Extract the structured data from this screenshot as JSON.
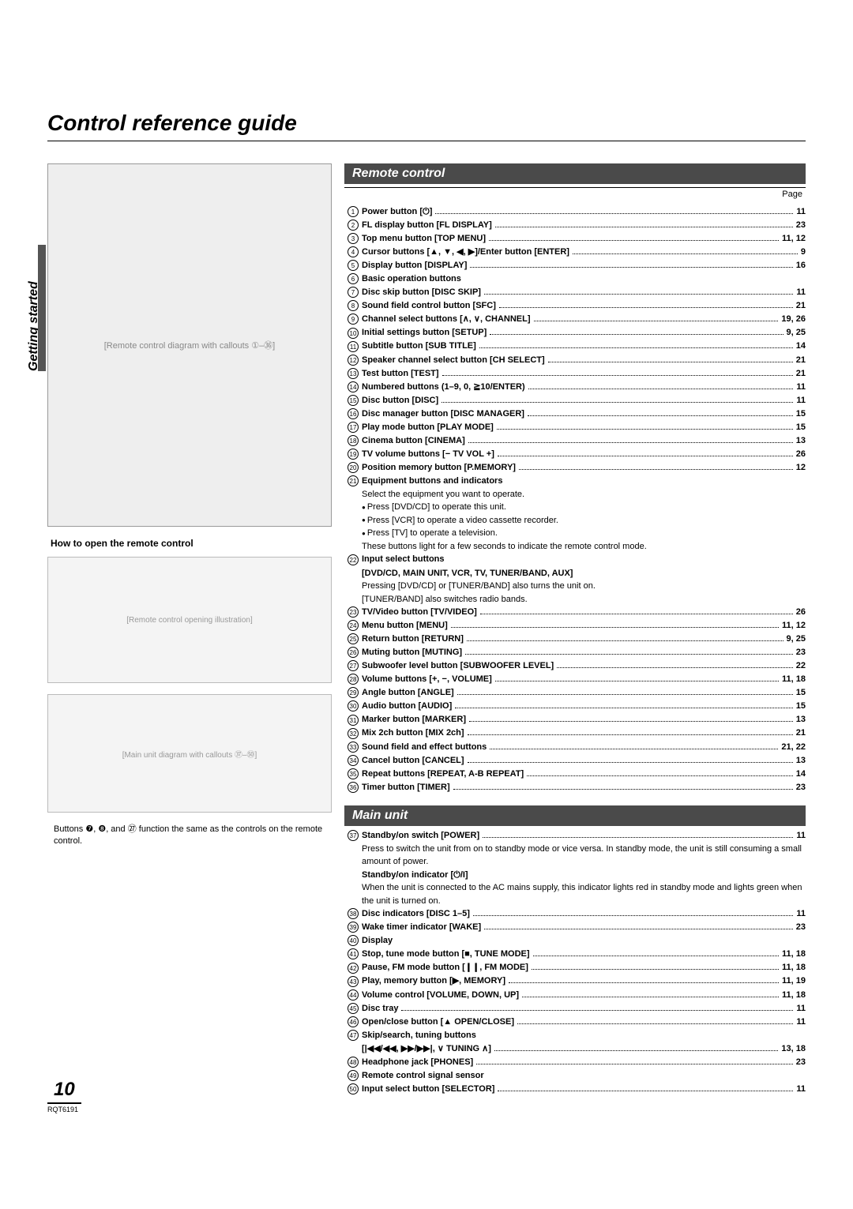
{
  "title": "Control reference guide",
  "side_tab": "Getting started",
  "page_header": "Page",
  "page_number": "10",
  "doc_id": "RQT6191",
  "left": {
    "remote_placeholder": "[Remote control diagram with callouts ①–㊱]",
    "open_heading": "How to open the remote control",
    "open_placeholder": "[Remote control opening illustration]",
    "unit_placeholder": "[Main unit diagram with callouts ㊲–㊿]",
    "caption": "Buttons ❼, ❽, and ㉗ function the same as the controls on the remote control."
  },
  "sections": {
    "remote": {
      "title": "Remote control",
      "items": [
        {
          "n": "1",
          "label": "Power button [⏻]",
          "page": "11"
        },
        {
          "n": "2",
          "label": "FL display button [FL DISPLAY]",
          "page": "23"
        },
        {
          "n": "3",
          "label": "Top menu button [TOP MENU]",
          "page": "11, 12"
        },
        {
          "n": "4",
          "label": "Cursor buttons [▲, ▼, ◀, ▶]/Enter button [ENTER]",
          "page": "9"
        },
        {
          "n": "5",
          "label": "Display button [DISPLAY]",
          "page": "16"
        },
        {
          "n": "6",
          "label": "Basic operation buttons",
          "nopage": true
        },
        {
          "n": "7",
          "label": "Disc skip button [DISC SKIP]",
          "page": "11"
        },
        {
          "n": "8",
          "label": "Sound field control button [SFC]",
          "page": "21"
        },
        {
          "n": "9",
          "label": "Channel select buttons [∧, ∨, CHANNEL]",
          "page": "19, 26"
        },
        {
          "n": "10",
          "label": "Initial settings button [SETUP]",
          "page": "9, 25"
        },
        {
          "n": "11",
          "label": "Subtitle button [SUB TITLE]",
          "page": "14"
        },
        {
          "n": "12",
          "label": "Speaker channel select button [CH SELECT]",
          "page": "21"
        },
        {
          "n": "13",
          "label": "Test button [TEST]",
          "page": "21"
        },
        {
          "n": "14",
          "label": "Numbered buttons (1–9, 0, ≧10/ENTER)",
          "page": "11"
        },
        {
          "n": "15",
          "label": "Disc button [DISC]",
          "page": "11"
        },
        {
          "n": "16",
          "label": "Disc manager button [DISC MANAGER]",
          "page": "15"
        },
        {
          "n": "17",
          "label": "Play mode button [PLAY MODE]",
          "page": "15"
        },
        {
          "n": "18",
          "label": "Cinema button [CINEMA]",
          "page": "13"
        },
        {
          "n": "19",
          "label": "TV volume buttons [− TV VOL +]",
          "page": "26"
        },
        {
          "n": "20",
          "label": "Position memory button [P.MEMORY]",
          "page": "12"
        },
        {
          "n": "21",
          "label": "Equipment buttons and indicators",
          "nopage": true,
          "sub": [
            {
              "t": "Select the equipment you want to operate."
            },
            {
              "t": "Press [DVD/CD] to operate this unit.",
              "b": true
            },
            {
              "t": "Press [VCR] to operate a video cassette recorder.",
              "b": true
            },
            {
              "t": "Press [TV] to operate a television.",
              "b": true
            },
            {
              "t": "These buttons light for a few seconds to indicate the remote control mode."
            }
          ]
        },
        {
          "n": "22",
          "label": "Input select buttons",
          "nopage": true,
          "sub": [
            {
              "t": "[DVD/CD, MAIN UNIT, VCR, TV, TUNER/BAND, AUX]",
              "bold": true
            },
            {
              "t": "Pressing [DVD/CD] or [TUNER/BAND] also turns the unit on."
            },
            {
              "t": "[TUNER/BAND] also switches radio bands."
            }
          ]
        },
        {
          "n": "23",
          "label": "TV/Video button [TV/VIDEO]",
          "page": "26"
        },
        {
          "n": "24",
          "label": "Menu button [MENU]",
          "page": "11, 12"
        },
        {
          "n": "25",
          "label": "Return button [RETURN]",
          "page": "9, 25"
        },
        {
          "n": "26",
          "label": "Muting button [MUTING]",
          "page": "23"
        },
        {
          "n": "27",
          "label": "Subwoofer level button [SUBWOOFER LEVEL]",
          "page": "22"
        },
        {
          "n": "28",
          "label": "Volume buttons [+, −, VOLUME]",
          "page": "11, 18"
        },
        {
          "n": "29",
          "label": "Angle button [ANGLE]",
          "page": "15"
        },
        {
          "n": "30",
          "label": "Audio button [AUDIO]",
          "page": "15"
        },
        {
          "n": "31",
          "label": "Marker button [MARKER]",
          "page": "13"
        },
        {
          "n": "32",
          "label": "Mix 2ch button [MIX 2ch]",
          "page": "21"
        },
        {
          "n": "33",
          "label": "Sound field and effect buttons",
          "page": "21, 22"
        },
        {
          "n": "34",
          "label": "Cancel button [CANCEL]",
          "page": "13"
        },
        {
          "n": "35",
          "label": "Repeat buttons [REPEAT, A-B REPEAT]",
          "page": "14"
        },
        {
          "n": "36",
          "label": "Timer button [TIMER]",
          "page": "23"
        }
      ]
    },
    "main_unit": {
      "title": "Main unit",
      "items": [
        {
          "n": "37",
          "label": "Standby/on switch [POWER]",
          "page": "11",
          "sub": [
            {
              "t": "Press to switch the unit from on to standby mode or vice versa. In standby mode, the unit is still consuming a small amount of power."
            },
            {
              "t": "Standby/on indicator [⏻/I]",
              "bold": true
            },
            {
              "t": "When the unit is connected to the AC mains supply, this indicator lights red in standby mode and lights green when the unit is turned on."
            }
          ]
        },
        {
          "n": "38",
          "label": "Disc indicators [DISC 1–5]",
          "page": "11"
        },
        {
          "n": "39",
          "label": "Wake timer indicator [WAKE]",
          "page": "23"
        },
        {
          "n": "40",
          "label": "Display",
          "nopage": true
        },
        {
          "n": "41",
          "label": "Stop, tune mode button [■, TUNE MODE]",
          "page": "11, 18"
        },
        {
          "n": "42",
          "label": "Pause, FM mode button [❙❙, FM MODE]",
          "page": "11, 18"
        },
        {
          "n": "43",
          "label": "Play, memory button [▶, MEMORY]",
          "page": "11, 19"
        },
        {
          "n": "44",
          "label": "Volume control [VOLUME, DOWN, UP]",
          "page": "11, 18"
        },
        {
          "n": "45",
          "label": "Disc tray",
          "page": "11"
        },
        {
          "n": "46",
          "label": "Open/close button [▲ OPEN/CLOSE]",
          "page": "11"
        },
        {
          "n": "47",
          "label": "Skip/search, tuning buttons",
          "nopage": true,
          "sub": [
            {
              "row": true,
              "label": "[|◀◀/◀◀, ▶▶/▶▶|, ∨ TUNING ∧]",
              "page": "13, 18"
            }
          ]
        },
        {
          "n": "48",
          "label": "Headphone jack [PHONES]",
          "page": "23"
        },
        {
          "n": "49",
          "label": "Remote control signal sensor",
          "nopage": true
        },
        {
          "n": "50",
          "label": "Input select button [SELECTOR]",
          "page": "11"
        }
      ]
    }
  }
}
